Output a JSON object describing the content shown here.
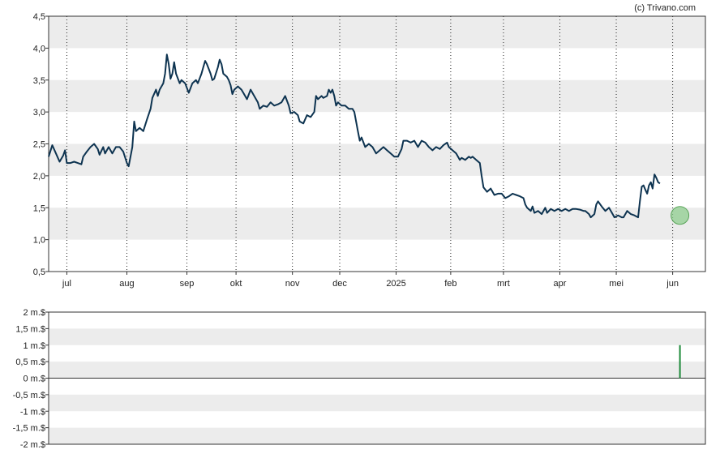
{
  "credit": "(c) Trivano.com",
  "colors": {
    "band": "#ececec",
    "line": "#0d3350",
    "axis": "#333333",
    "marker_fill": "#8fce8f",
    "marker_stroke": "#5aa55a",
    "volume_bar": "#1e8a3a"
  },
  "chart_data": [
    {
      "type": "line",
      "title": "",
      "xlabel": "",
      "ylabel": "",
      "ylim": [
        0.5,
        4.5
      ],
      "yticks": [
        "0,5",
        "1,0",
        "1,5",
        "2,0",
        "2,5",
        "3,0",
        "3,5",
        "4,0",
        "4,5"
      ],
      "xlim_days": [
        0,
        361
      ],
      "xticks": [
        {
          "label": "jul",
          "day": 10
        },
        {
          "label": "aug",
          "day": 43
        },
        {
          "label": "sep",
          "day": 76
        },
        {
          "label": "okt",
          "day": 103
        },
        {
          "label": "nov",
          "day": 134
        },
        {
          "label": "dec",
          "day": 160
        },
        {
          "label": "2025",
          "day": 191
        },
        {
          "label": "feb",
          "day": 221
        },
        {
          "label": "mrt",
          "day": 250
        },
        {
          "label": "apr",
          "day": 281
        },
        {
          "label": "mei",
          "day": 312
        },
        {
          "label": "jun",
          "day": 343
        }
      ],
      "grid": "horizontal bands, dotted vertical lines at month ticks",
      "highlight": {
        "day": 347,
        "value": 1.38
      },
      "series": [
        {
          "points": [
            [
              0,
              2.3
            ],
            [
              2,
              2.48
            ],
            [
              4,
              2.35
            ],
            [
              6,
              2.22
            ],
            [
              8,
              2.32
            ],
            [
              9,
              2.4
            ],
            [
              10,
              2.2
            ],
            [
              12,
              2.2
            ],
            [
              14,
              2.22
            ],
            [
              16,
              2.2
            ],
            [
              18,
              2.18
            ],
            [
              19,
              2.3
            ],
            [
              21,
              2.38
            ],
            [
              23,
              2.45
            ],
            [
              25,
              2.5
            ],
            [
              27,
              2.42
            ],
            [
              28,
              2.33
            ],
            [
              30,
              2.45
            ],
            [
              31,
              2.35
            ],
            [
              33,
              2.45
            ],
            [
              35,
              2.35
            ],
            [
              37,
              2.45
            ],
            [
              39,
              2.45
            ],
            [
              41,
              2.38
            ],
            [
              43,
              2.2
            ],
            [
              44,
              2.15
            ],
            [
              46,
              2.45
            ],
            [
              47,
              2.85
            ],
            [
              48,
              2.7
            ],
            [
              50,
              2.75
            ],
            [
              52,
              2.7
            ],
            [
              54,
              2.88
            ],
            [
              56,
              3.05
            ],
            [
              57,
              3.22
            ],
            [
              59,
              3.35
            ],
            [
              60,
              3.25
            ],
            [
              61,
              3.35
            ],
            [
              63,
              3.45
            ],
            [
              64,
              3.6
            ],
            [
              65,
              3.9
            ],
            [
              66,
              3.75
            ],
            [
              67,
              3.52
            ],
            [
              68,
              3.6
            ],
            [
              69,
              3.78
            ],
            [
              70,
              3.6
            ],
            [
              72,
              3.45
            ],
            [
              73,
              3.5
            ],
            [
              75,
              3.45
            ],
            [
              77,
              3.3
            ],
            [
              79,
              3.45
            ],
            [
              81,
              3.5
            ],
            [
              82,
              3.45
            ],
            [
              84,
              3.6
            ],
            [
              85,
              3.7
            ],
            [
              86,
              3.8
            ],
            [
              87,
              3.75
            ],
            [
              89,
              3.6
            ],
            [
              90,
              3.5
            ],
            [
              91,
              3.52
            ],
            [
              93,
              3.7
            ],
            [
              94,
              3.82
            ],
            [
              95,
              3.75
            ],
            [
              96,
              3.6
            ],
            [
              98,
              3.55
            ],
            [
              99,
              3.5
            ],
            [
              100,
              3.42
            ],
            [
              101,
              3.28
            ],
            [
              102,
              3.35
            ],
            [
              104,
              3.4
            ],
            [
              106,
              3.35
            ],
            [
              107,
              3.3
            ],
            [
              109,
              3.2
            ],
            [
              111,
              3.35
            ],
            [
              113,
              3.25
            ],
            [
              115,
              3.15
            ],
            [
              116,
              3.05
            ],
            [
              118,
              3.1
            ],
            [
              120,
              3.08
            ],
            [
              122,
              3.15
            ],
            [
              124,
              3.1
            ],
            [
              126,
              3.12
            ],
            [
              128,
              3.15
            ],
            [
              130,
              3.25
            ],
            [
              132,
              3.1
            ],
            [
              133,
              2.98
            ],
            [
              135,
              3.0
            ],
            [
              137,
              2.95
            ],
            [
              138,
              2.85
            ],
            [
              140,
              2.82
            ],
            [
              142,
              2.95
            ],
            [
              144,
              2.92
            ],
            [
              146,
              3.0
            ],
            [
              147,
              3.25
            ],
            [
              148,
              3.2
            ],
            [
              150,
              3.25
            ],
            [
              151,
              3.22
            ],
            [
              153,
              3.25
            ],
            [
              154,
              3.35
            ],
            [
              155,
              3.3
            ],
            [
              156,
              3.35
            ],
            [
              157,
              3.25
            ],
            [
              158,
              3.1
            ],
            [
              159,
              3.15
            ],
            [
              161,
              3.1
            ],
            [
              163,
              3.1
            ],
            [
              165,
              3.05
            ],
            [
              167,
              3.05
            ],
            [
              168,
              3.0
            ],
            [
              169,
              2.85
            ],
            [
              170,
              2.7
            ],
            [
              171,
              2.55
            ],
            [
              172,
              2.6
            ],
            [
              174,
              2.45
            ],
            [
              176,
              2.5
            ],
            [
              178,
              2.45
            ],
            [
              180,
              2.35
            ],
            [
              182,
              2.4
            ],
            [
              184,
              2.45
            ],
            [
              186,
              2.4
            ],
            [
              188,
              2.35
            ],
            [
              190,
              2.3
            ],
            [
              192,
              2.3
            ],
            [
              194,
              2.42
            ],
            [
              195,
              2.55
            ],
            [
              197,
              2.55
            ],
            [
              199,
              2.52
            ],
            [
              201,
              2.55
            ],
            [
              203,
              2.45
            ],
            [
              205,
              2.55
            ],
            [
              207,
              2.52
            ],
            [
              209,
              2.45
            ],
            [
              211,
              2.4
            ],
            [
              213,
              2.45
            ],
            [
              215,
              2.42
            ],
            [
              217,
              2.48
            ],
            [
              219,
              2.52
            ],
            [
              220,
              2.45
            ],
            [
              222,
              2.4
            ],
            [
              224,
              2.35
            ],
            [
              226,
              2.25
            ],
            [
              227,
              2.28
            ],
            [
              229,
              2.25
            ],
            [
              231,
              2.3
            ],
            [
              232,
              2.28
            ],
            [
              233,
              2.3
            ],
            [
              235,
              2.25
            ],
            [
              237,
              2.2
            ],
            [
              238,
              2.0
            ],
            [
              239,
              1.82
            ],
            [
              241,
              1.75
            ],
            [
              243,
              1.8
            ],
            [
              245,
              1.7
            ],
            [
              247,
              1.72
            ],
            [
              249,
              1.72
            ],
            [
              251,
              1.65
            ],
            [
              253,
              1.68
            ],
            [
              255,
              1.72
            ],
            [
              257,
              1.7
            ],
            [
              259,
              1.68
            ],
            [
              261,
              1.65
            ],
            [
              262,
              1.55
            ],
            [
              263,
              1.5
            ],
            [
              265,
              1.45
            ],
            [
              266,
              1.52
            ],
            [
              267,
              1.42
            ],
            [
              269,
              1.45
            ],
            [
              271,
              1.4
            ],
            [
              273,
              1.5
            ],
            [
              274,
              1.42
            ],
            [
              276,
              1.48
            ],
            [
              278,
              1.45
            ],
            [
              280,
              1.48
            ],
            [
              282,
              1.45
            ],
            [
              284,
              1.48
            ],
            [
              286,
              1.45
            ],
            [
              288,
              1.48
            ],
            [
              290,
              1.48
            ],
            [
              292,
              1.47
            ],
            [
              294,
              1.45
            ],
            [
              295,
              1.45
            ],
            [
              297,
              1.4
            ],
            [
              298,
              1.35
            ],
            [
              300,
              1.4
            ],
            [
              301,
              1.55
            ],
            [
              302,
              1.6
            ],
            [
              304,
              1.52
            ],
            [
              306,
              1.45
            ],
            [
              308,
              1.5
            ],
            [
              310,
              1.4
            ],
            [
              311,
              1.35
            ],
            [
              313,
              1.38
            ],
            [
              315,
              1.35
            ],
            [
              316,
              1.35
            ],
            [
              318,
              1.45
            ],
            [
              320,
              1.4
            ],
            [
              322,
              1.38
            ],
            [
              324,
              1.35
            ],
            [
              325,
              1.6
            ],
            [
              326,
              1.83
            ],
            [
              327,
              1.85
            ],
            [
              328,
              1.78
            ],
            [
              329,
              1.72
            ],
            [
              330,
              1.85
            ],
            [
              331,
              1.9
            ],
            [
              332,
              1.8
            ],
            [
              333,
              2.02
            ],
            [
              334,
              1.97
            ],
            [
              335,
              1.9
            ],
            [
              336,
              1.88
            ]
          ]
        }
      ]
    },
    {
      "type": "bar",
      "title": "",
      "xlabel": "",
      "ylabel": "",
      "ylim": [
        -2000000,
        2000000
      ],
      "yticks": [
        "2 m.$",
        "1,5 m.$",
        "1 m.$",
        "0,5 m.$",
        "0 m.$",
        "-0,5 m.$",
        "-1 m.$",
        "-1,5 m.$",
        "-2 m.$"
      ],
      "grid": "horizontal bands",
      "bars": [
        {
          "day": 347,
          "value": 1000000
        }
      ]
    }
  ]
}
